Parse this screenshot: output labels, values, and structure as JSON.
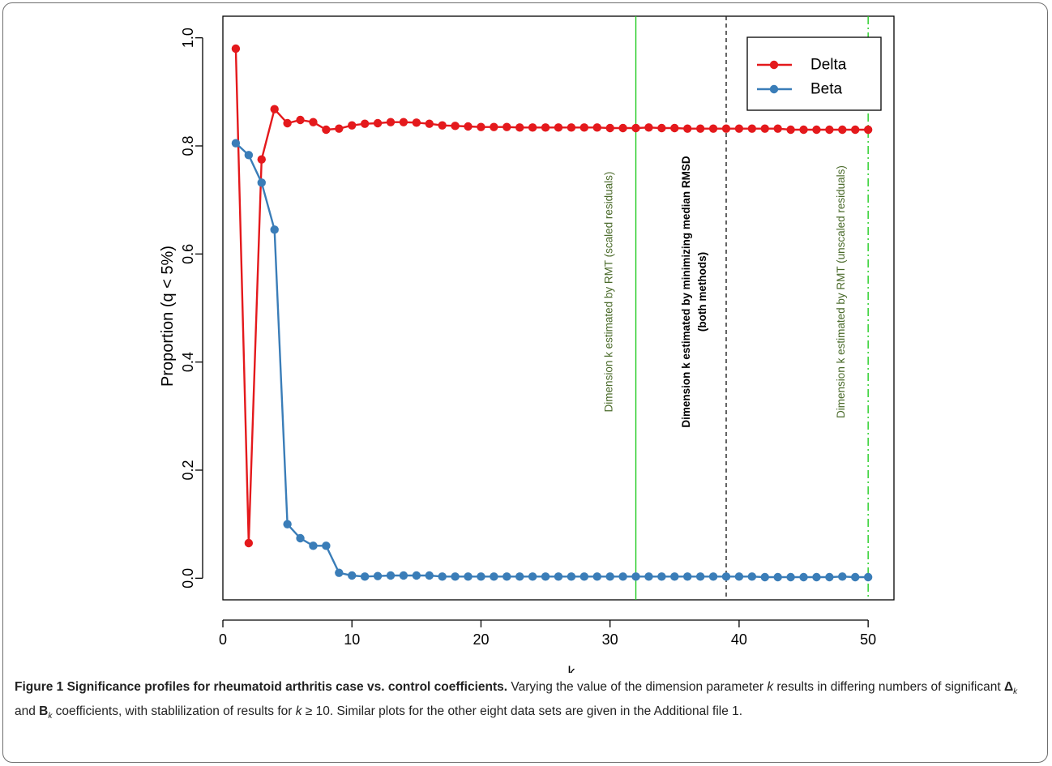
{
  "chart_data": {
    "type": "line",
    "xlabel": "k",
    "ylabel": "Proportion (q < 5%)",
    "xlim": [
      0,
      52
    ],
    "ylim": [
      -0.04,
      1.04
    ],
    "xticks": [
      0,
      10,
      20,
      30,
      40,
      50
    ],
    "yticks": [
      0.0,
      0.2,
      0.4,
      0.6,
      0.8,
      1.0
    ],
    "xtick_labels": [
      "0",
      "10",
      "20",
      "30",
      "40",
      "50"
    ],
    "ytick_labels": [
      "0.0",
      "0.2",
      "0.4",
      "0.6",
      "0.8",
      "1.0"
    ],
    "grid": false,
    "legend_position": "top-right",
    "x": [
      1,
      2,
      3,
      4,
      5,
      6,
      7,
      8,
      9,
      10,
      11,
      12,
      13,
      14,
      15,
      16,
      17,
      18,
      19,
      20,
      21,
      22,
      23,
      24,
      25,
      26,
      27,
      28,
      29,
      30,
      31,
      32,
      33,
      34,
      35,
      36,
      37,
      38,
      39,
      40,
      41,
      42,
      43,
      44,
      45,
      46,
      47,
      48,
      49,
      50
    ],
    "series": [
      {
        "name": "Delta",
        "color": "#e4191c",
        "values": [
          0.98,
          0.065,
          0.775,
          0.868,
          0.842,
          0.848,
          0.844,
          0.83,
          0.832,
          0.838,
          0.841,
          0.842,
          0.844,
          0.844,
          0.843,
          0.841,
          0.838,
          0.837,
          0.836,
          0.835,
          0.835,
          0.835,
          0.834,
          0.834,
          0.834,
          0.834,
          0.834,
          0.834,
          0.834,
          0.833,
          0.833,
          0.833,
          0.834,
          0.833,
          0.833,
          0.832,
          0.832,
          0.832,
          0.832,
          0.832,
          0.832,
          0.832,
          0.832,
          0.83,
          0.83,
          0.83,
          0.83,
          0.83,
          0.83,
          0.83
        ]
      },
      {
        "name": "Beta",
        "color": "#3a7db8",
        "values": [
          0.805,
          0.783,
          0.732,
          0.645,
          0.1,
          0.074,
          0.06,
          0.06,
          0.01,
          0.005,
          0.003,
          0.004,
          0.005,
          0.005,
          0.005,
          0.005,
          0.003,
          0.003,
          0.003,
          0.003,
          0.003,
          0.003,
          0.003,
          0.003,
          0.003,
          0.003,
          0.003,
          0.003,
          0.003,
          0.003,
          0.003,
          0.003,
          0.003,
          0.003,
          0.003,
          0.003,
          0.003,
          0.003,
          0.003,
          0.003,
          0.003,
          0.002,
          0.002,
          0.002,
          0.002,
          0.002,
          0.002,
          0.003,
          0.002,
          0.002
        ]
      }
    ],
    "vlines": [
      {
        "x": 32,
        "color": "#22cc22",
        "style": "solid",
        "label": "Dimension k estimated by RMT (scaled residuals)",
        "label_x": 29.9,
        "label_color": "#4a6a2a",
        "bold": false
      },
      {
        "x": 39,
        "color": "#222222",
        "style": "dashed",
        "label": "Dimension k estimated by minimizing median RMSD",
        "label2": "(both methods)",
        "label_x": 35.9,
        "label_color": "#000000",
        "bold": true
      },
      {
        "x": 50,
        "color": "#22cc22",
        "style": "dashdot",
        "label": "Dimension k estimated by RMT (unscaled residuals)",
        "label_x": 47.9,
        "label_color": "#4a6a2a",
        "bold": false
      }
    ]
  },
  "caption": {
    "title": "Figure 1 Significance profiles for rheumatoid arthritis case vs. control coefficients.",
    "text_1": " Varying the value of the dimension parameter ",
    "k1": "k",
    "text_2": " results in differing numbers of significant ",
    "delta_sym": "Δ",
    "sub_k1": "k",
    "text_3": " and ",
    "b_sym": "B",
    "sub_k2": "k",
    "text_4": " coefficients, with stablilization of results for ",
    "k2": "k",
    "text_5": " ≥ 10. Similar plots for the other eight data sets are given in the Additional file 1."
  }
}
